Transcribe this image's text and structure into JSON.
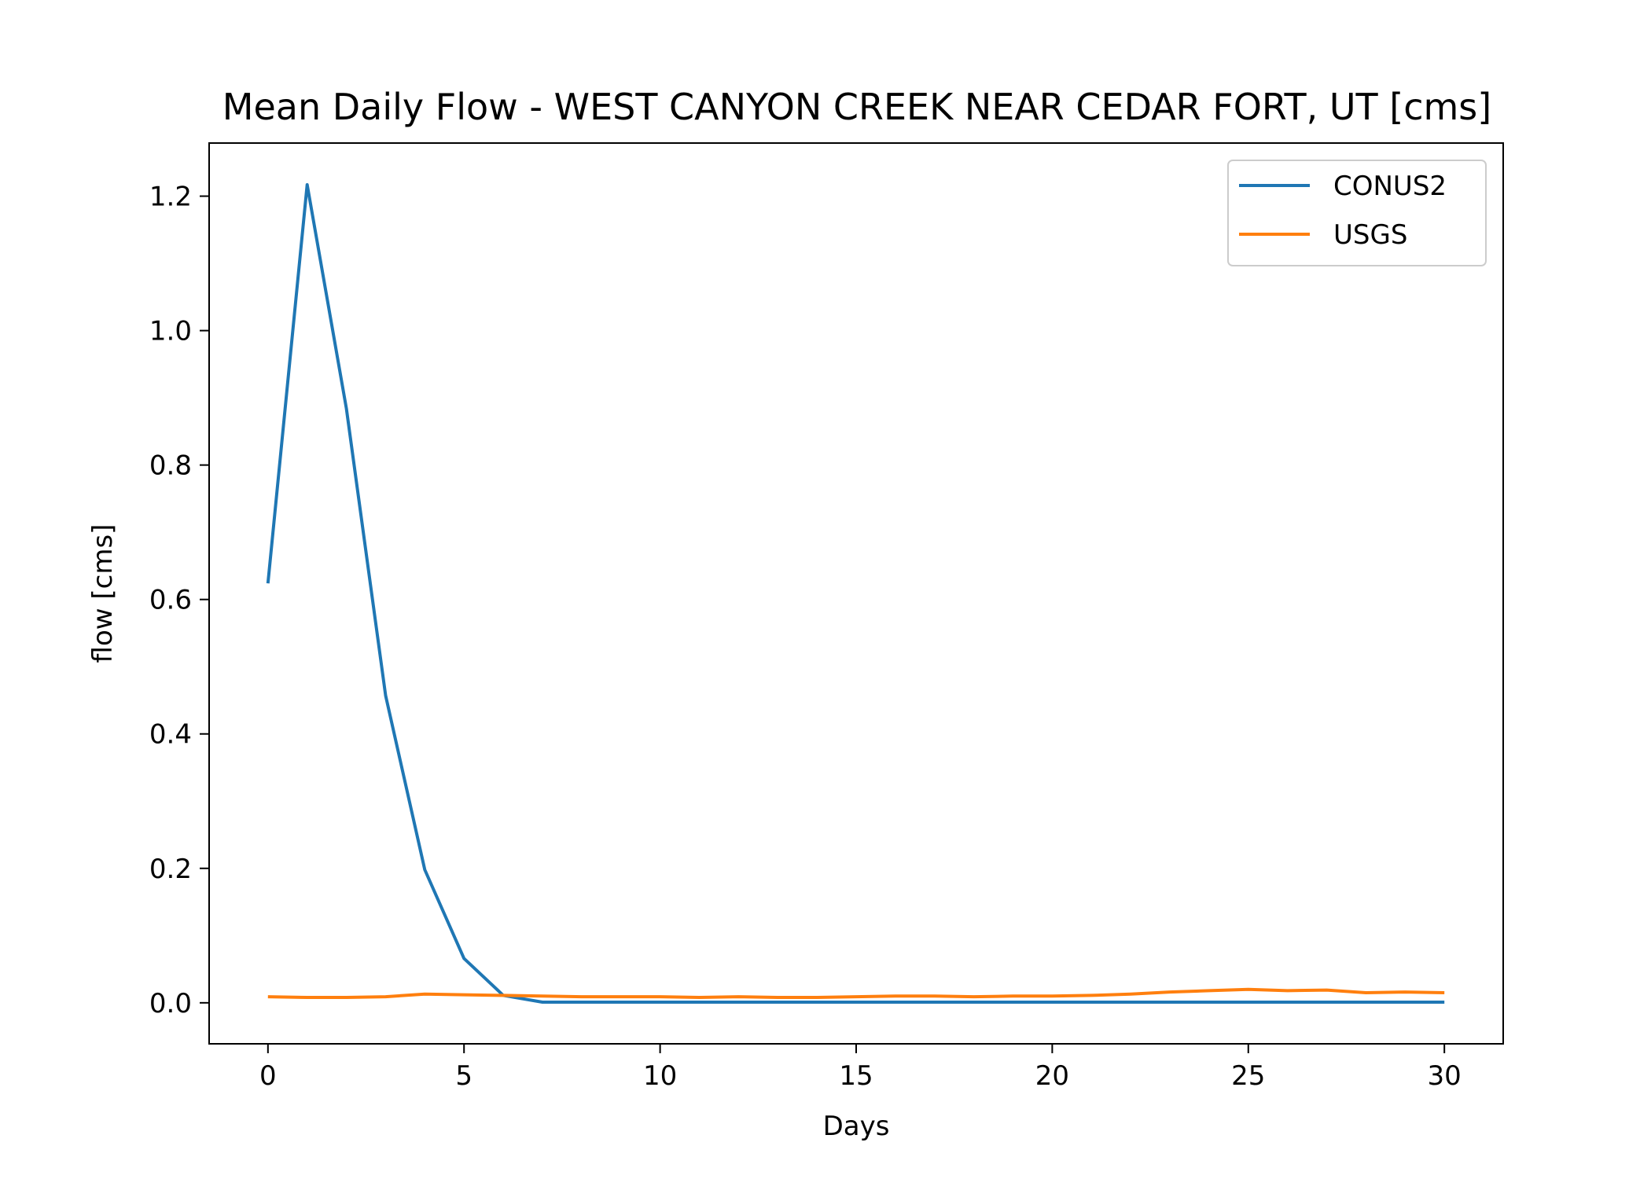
{
  "chart_data": {
    "type": "line",
    "title": "Mean Daily Flow - WEST CANYON CREEK NEAR CEDAR FORT, UT [cms]",
    "xlabel": "Days",
    "ylabel": "flow [cms]",
    "xlim": [
      -1.5,
      31.5
    ],
    "ylim": [
      -0.061,
      1.279
    ],
    "xticks": [
      0,
      5,
      10,
      15,
      20,
      25,
      30
    ],
    "xtick_labels": [
      "0",
      "5",
      "10",
      "15",
      "20",
      "25",
      "30"
    ],
    "yticks": [
      0.0,
      0.2,
      0.4,
      0.6,
      0.8,
      1.0,
      1.2
    ],
    "ytick_labels": [
      "0.0",
      "0.2",
      "0.4",
      "0.6",
      "0.8",
      "1.0",
      "1.2"
    ],
    "grid": false,
    "legend_position": "upper right",
    "x": [
      0,
      1,
      2,
      3,
      4,
      5,
      6,
      7,
      8,
      9,
      10,
      11,
      12,
      13,
      14,
      15,
      16,
      17,
      18,
      19,
      20,
      21,
      22,
      23,
      24,
      25,
      26,
      27,
      28,
      29,
      30
    ],
    "series": [
      {
        "name": "CONUS2",
        "color": "#1f77b4",
        "values": [
          0.624,
          1.217,
          0.884,
          0.457,
          0.198,
          0.066,
          0.011,
          0.001,
          0.001,
          0.001,
          0.001,
          0.001,
          0.001,
          0.001,
          0.001,
          0.001,
          0.001,
          0.001,
          0.001,
          0.001,
          0.001,
          0.001,
          0.001,
          0.001,
          0.001,
          0.001,
          0.001,
          0.001,
          0.001,
          0.001,
          0.001
        ]
      },
      {
        "name": "USGS",
        "color": "#ff7f0e",
        "values": [
          0.009,
          0.008,
          0.008,
          0.009,
          0.013,
          0.012,
          0.011,
          0.01,
          0.009,
          0.009,
          0.009,
          0.008,
          0.009,
          0.008,
          0.008,
          0.009,
          0.01,
          0.01,
          0.009,
          0.01,
          0.01,
          0.011,
          0.013,
          0.016,
          0.018,
          0.02,
          0.018,
          0.019,
          0.015,
          0.016,
          0.015
        ]
      }
    ]
  }
}
